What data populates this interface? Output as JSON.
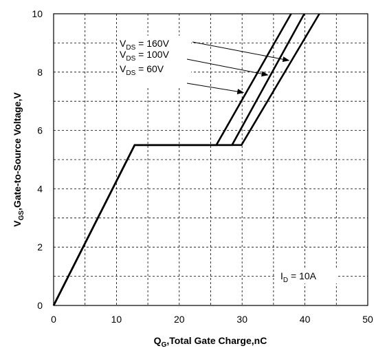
{
  "chart_data": {
    "type": "line",
    "xlabel": {
      "main": "Q",
      "sub": "G",
      "rest": ",Total Gate Charge,nC"
    },
    "ylabel": {
      "main": "V",
      "sub": "GS",
      "rest": ",Gate-to-Source Voltage,V"
    },
    "xlim": [
      0,
      50
    ],
    "ylim": [
      0,
      10
    ],
    "x_ticks": [
      "0",
      "10",
      "20",
      "30",
      "40",
      "50"
    ],
    "y_ticks": [
      "0",
      "2",
      "4",
      "6",
      "8",
      "10"
    ],
    "grid": "dashed",
    "series": [
      {
        "name": "VDS = 160V",
        "label_main": "V",
        "label_sub": "DS",
        "label_rest": " = 160V",
        "points": [
          [
            0,
            0
          ],
          [
            12.9,
            5.5
          ],
          [
            29.9,
            5.5
          ],
          [
            42.3,
            10
          ]
        ]
      },
      {
        "name": "VDS = 100V",
        "label_main": "V",
        "label_sub": "DS",
        "label_rest": " = 100V",
        "points": [
          [
            0,
            0
          ],
          [
            12.9,
            5.5
          ],
          [
            28.4,
            5.5
          ],
          [
            39.9,
            10
          ]
        ]
      },
      {
        "name": "VDS = 60V",
        "label_main": "V",
        "label_sub": "DS",
        "label_rest": " = 60V",
        "points": [
          [
            0,
            0
          ],
          [
            12.9,
            5.5
          ],
          [
            25.9,
            5.5
          ],
          [
            37.8,
            10
          ]
        ]
      }
    ],
    "annotation": {
      "main": "I",
      "sub": "D",
      "rest": " = 10A"
    }
  }
}
